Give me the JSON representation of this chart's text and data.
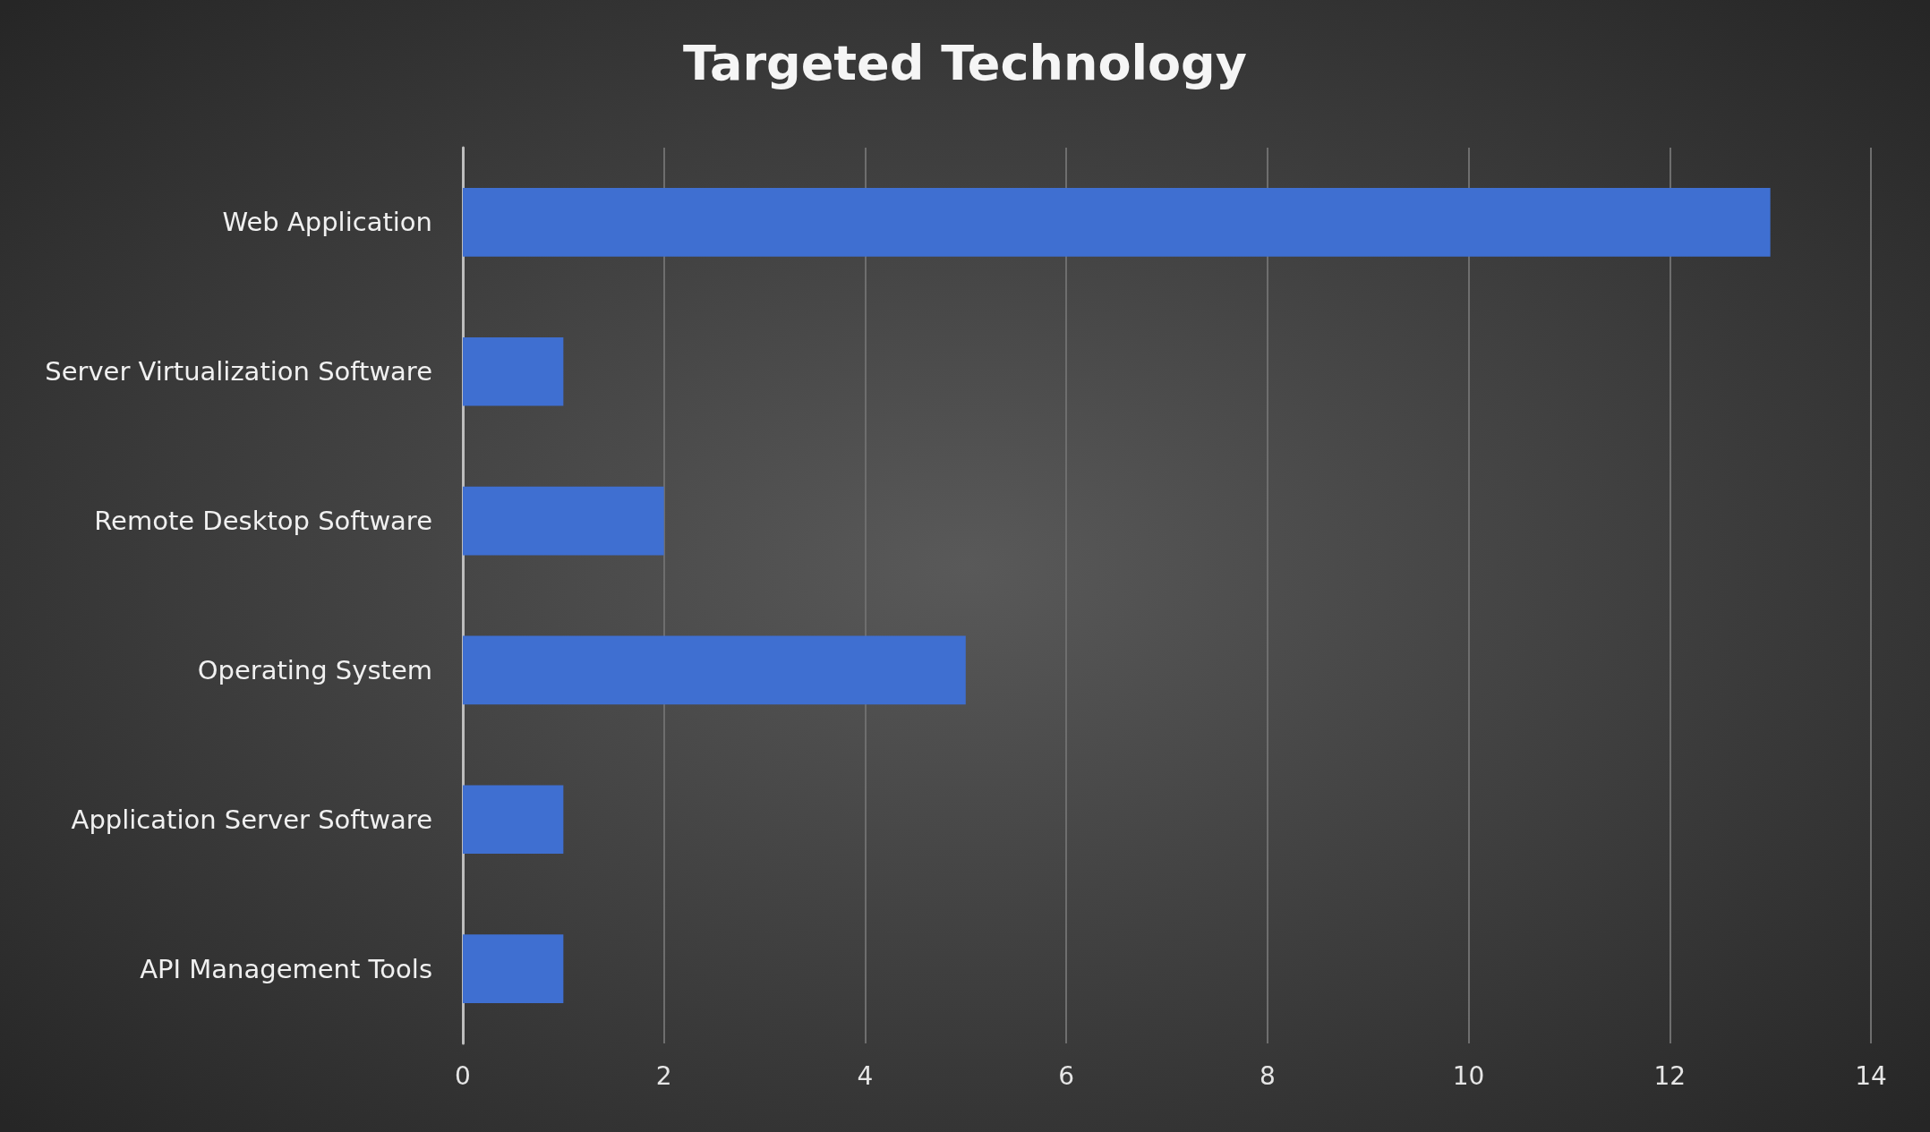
{
  "chart_data": {
    "type": "bar",
    "title": "Targeted Technology",
    "orientation": "horizontal",
    "categories": [
      "Web Application",
      "Server Virtualization Software",
      "Remote Desktop Software",
      "Operating System",
      "Application Server Software",
      "API Management Tools"
    ],
    "values": [
      13,
      1,
      2,
      5,
      1,
      1
    ],
    "color": "#3f6fd1",
    "xlim": [
      0,
      14
    ],
    "xticks": [
      0,
      2,
      4,
      6,
      8,
      10,
      12,
      14
    ],
    "grid": "x"
  }
}
